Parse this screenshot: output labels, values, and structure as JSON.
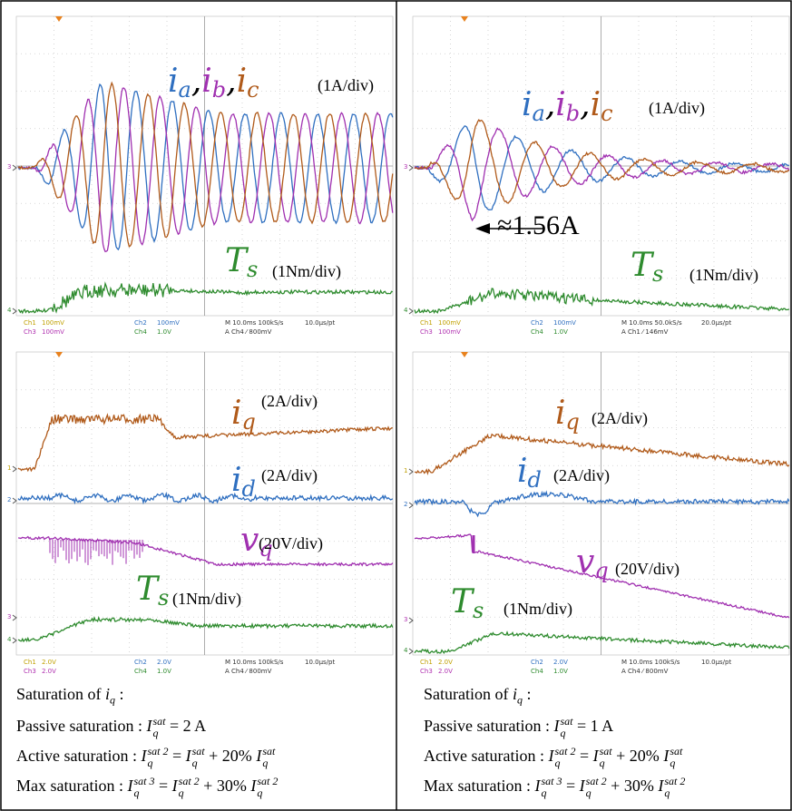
{
  "panels": [
    {
      "labels": [
        {
          "parts": [
            {
              "base": "i",
              "sub": "a",
              "color": "#2f6fc0"
            },
            {
              "base": "i",
              "sub": "b",
              "color": "#a030b0"
            },
            {
              "base": "i",
              "sub": "c",
              "color": "#b05a1a"
            }
          ],
          "separator": ",",
          "unit": "(1A/div)"
        },
        {
          "parts": [
            {
              "base": "T",
              "sub": "s",
              "color": "#2e8b2e"
            }
          ],
          "unit": "(1Nm/div)"
        }
      ],
      "markers": [
        "3",
        "4"
      ],
      "readout": [
        [
          "Ch1",
          "100mV",
          "Ch2",
          "100mV",
          "M 10.0ms 100kS/s",
          "10.0µs/pt"
        ],
        [
          "Ch3",
          "100mV",
          "Ch4",
          "1.0V",
          "A Ch4 ⁄ 800mV"
        ]
      ]
    },
    {
      "labels": [
        {
          "parts": [
            {
              "base": "i",
              "sub": "a",
              "color": "#2f6fc0"
            },
            {
              "base": "i",
              "sub": "b",
              "color": "#a030b0"
            },
            {
              "base": "i",
              "sub": "c",
              "color": "#b05a1a"
            }
          ],
          "separator": ",",
          "unit": "(1A/div)"
        },
        {
          "parts": [
            {
              "base": "T",
              "sub": "s",
              "color": "#2e8b2e"
            }
          ],
          "unit": "(1Nm/div)"
        }
      ],
      "markers": [
        "3",
        "4"
      ],
      "annotation": "≈1.56A",
      "readout": [
        [
          "Ch1",
          "100mV",
          "Ch2",
          "100mV",
          "M 10.0ms 50.0kS/s",
          "20.0µs/pt"
        ],
        [
          "Ch3",
          "100mV",
          "Ch4",
          "1.0V",
          "A Ch1 ⁄ 146mV"
        ]
      ]
    },
    {
      "labels": [
        {
          "parts": [
            {
              "base": "i",
              "sub": "q",
              "color": "#b05a1a"
            }
          ],
          "unit": "(2A/div)"
        },
        {
          "parts": [
            {
              "base": "i",
              "sub": "d",
              "color": "#2f6fc0"
            }
          ],
          "unit": "(2A/div)"
        },
        {
          "parts": [
            {
              "base": "v",
              "sub": "q",
              "color": "#a030b0"
            }
          ],
          "unit": "(20V/div)"
        },
        {
          "parts": [
            {
              "base": "T",
              "sub": "s",
              "color": "#2e8b2e"
            }
          ],
          "unit": "(1Nm/div)"
        }
      ],
      "markers": [
        "1",
        "2",
        "3",
        "4"
      ],
      "readout": [
        [
          "Ch1",
          "2.0V",
          "Ch2",
          "2.0V",
          "M 10.0ms 100kS/s",
          "10.0µs/pt"
        ],
        [
          "Ch3",
          "2.0V",
          "Ch4",
          "1.0V",
          "A Ch4 ⁄ 800mV"
        ]
      ]
    },
    {
      "labels": [
        {
          "parts": [
            {
              "base": "i",
              "sub": "q",
              "color": "#b05a1a"
            }
          ],
          "unit": "(2A/div)"
        },
        {
          "parts": [
            {
              "base": "i",
              "sub": "d",
              "color": "#2f6fc0"
            }
          ],
          "unit": "(2A/div)"
        },
        {
          "parts": [
            {
              "base": "v",
              "sub": "q",
              "color": "#a030b0"
            }
          ],
          "unit": "(20V/div)"
        },
        {
          "parts": [
            {
              "base": "T",
              "sub": "s",
              "color": "#2e8b2e"
            }
          ],
          "unit": "(1Nm/div)"
        }
      ],
      "markers": [
        "1",
        "2",
        "3",
        "4"
      ],
      "readout": [
        [
          "Ch1",
          "2.0V",
          "Ch2",
          "2.0V",
          "M 10.0ms 100kS/s",
          "10.0µs/pt"
        ],
        [
          "Ch3",
          "2.0V",
          "Ch4",
          "1.0V",
          "A Ch4 ⁄ 800mV"
        ]
      ]
    }
  ],
  "captions": [
    [
      [
        {
          "text": "Saturation of "
        },
        {
          "base": "i",
          "sub": "q"
        },
        {
          "text": " :"
        }
      ],
      [
        {
          "text": "Passive saturation : "
        },
        {
          "base": "I",
          "sub": "q",
          "sup": "sat"
        },
        {
          "text": " = 2 A"
        }
      ],
      [
        {
          "text": "Active saturation : "
        },
        {
          "base": "I",
          "sub": "q",
          "sup": "sat 2"
        },
        {
          "text": " = "
        },
        {
          "base": "I",
          "sub": "q",
          "sup": "sat"
        },
        {
          "text": " + 20% "
        },
        {
          "base": "I",
          "sub": "q",
          "sup": "sat"
        }
      ],
      [
        {
          "text": "Max saturation : "
        },
        {
          "base": "I",
          "sub": "q",
          "sup": "sat 3"
        },
        {
          "text": " = "
        },
        {
          "base": "I",
          "sub": "q",
          "sup": "sat 2"
        },
        {
          "text": " + 30% "
        },
        {
          "base": "I",
          "sub": "q",
          "sup": "sat 2"
        }
      ]
    ],
    [
      [
        {
          "text": "Saturation of "
        },
        {
          "base": "i",
          "sub": "q"
        },
        {
          "text": " :"
        }
      ],
      [
        {
          "text": "Passive saturation : "
        },
        {
          "base": "I",
          "sub": "q",
          "sup": "sat"
        },
        {
          "text": " = 1 A"
        }
      ],
      [
        {
          "text": "Active saturation : "
        },
        {
          "base": "I",
          "sub": "q",
          "sup": "sat 2"
        },
        {
          "text": " = "
        },
        {
          "base": "I",
          "sub": "q",
          "sup": "sat"
        },
        {
          "text": " + 20% "
        },
        {
          "base": "I",
          "sub": "q",
          "sup": "sat"
        }
      ],
      [
        {
          "text": "Max saturation : "
        },
        {
          "base": "I",
          "sub": "q",
          "sup": "sat 3"
        },
        {
          "text": " = "
        },
        {
          "base": "I",
          "sub": "q",
          "sup": "sat 2"
        },
        {
          "text": " + 30% "
        },
        {
          "base": "I",
          "sub": "q",
          "sup": "sat 2"
        }
      ]
    ]
  ]
}
